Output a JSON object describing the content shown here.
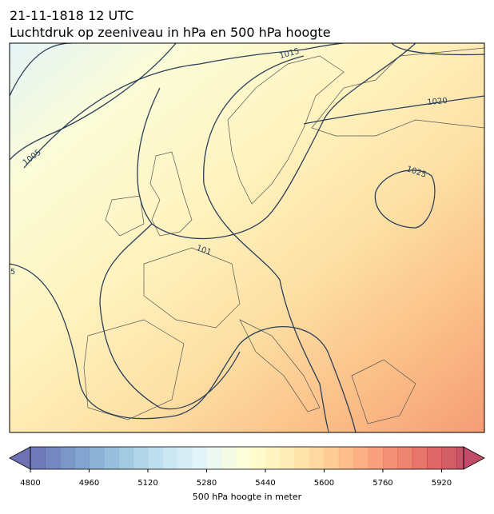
{
  "header": {
    "title": "21-11-1818 12 UTC",
    "subtitle": "Luchtdruk op zeeniveau in hPa en 500 hPa hoogte"
  },
  "map": {
    "contour_labels": [
      "1015",
      "1020",
      "1005",
      "1025",
      "101",
      "5"
    ]
  },
  "colorbar": {
    "lim": [
      4800,
      5980
    ],
    "level_step": 40,
    "ticks": [
      4800,
      4960,
      5120,
      5280,
      5440,
      5600,
      5760,
      5920
    ],
    "colors": [
      "#313695",
      "#4575b4",
      "#74add1",
      "#abd9e9",
      "#e0f3f8",
      "#ffffbf",
      "#fee090",
      "#fdae61",
      "#f46d43",
      "#d73027",
      "#a50026"
    ],
    "label": "500 hPa hoogte in meter"
  }
}
